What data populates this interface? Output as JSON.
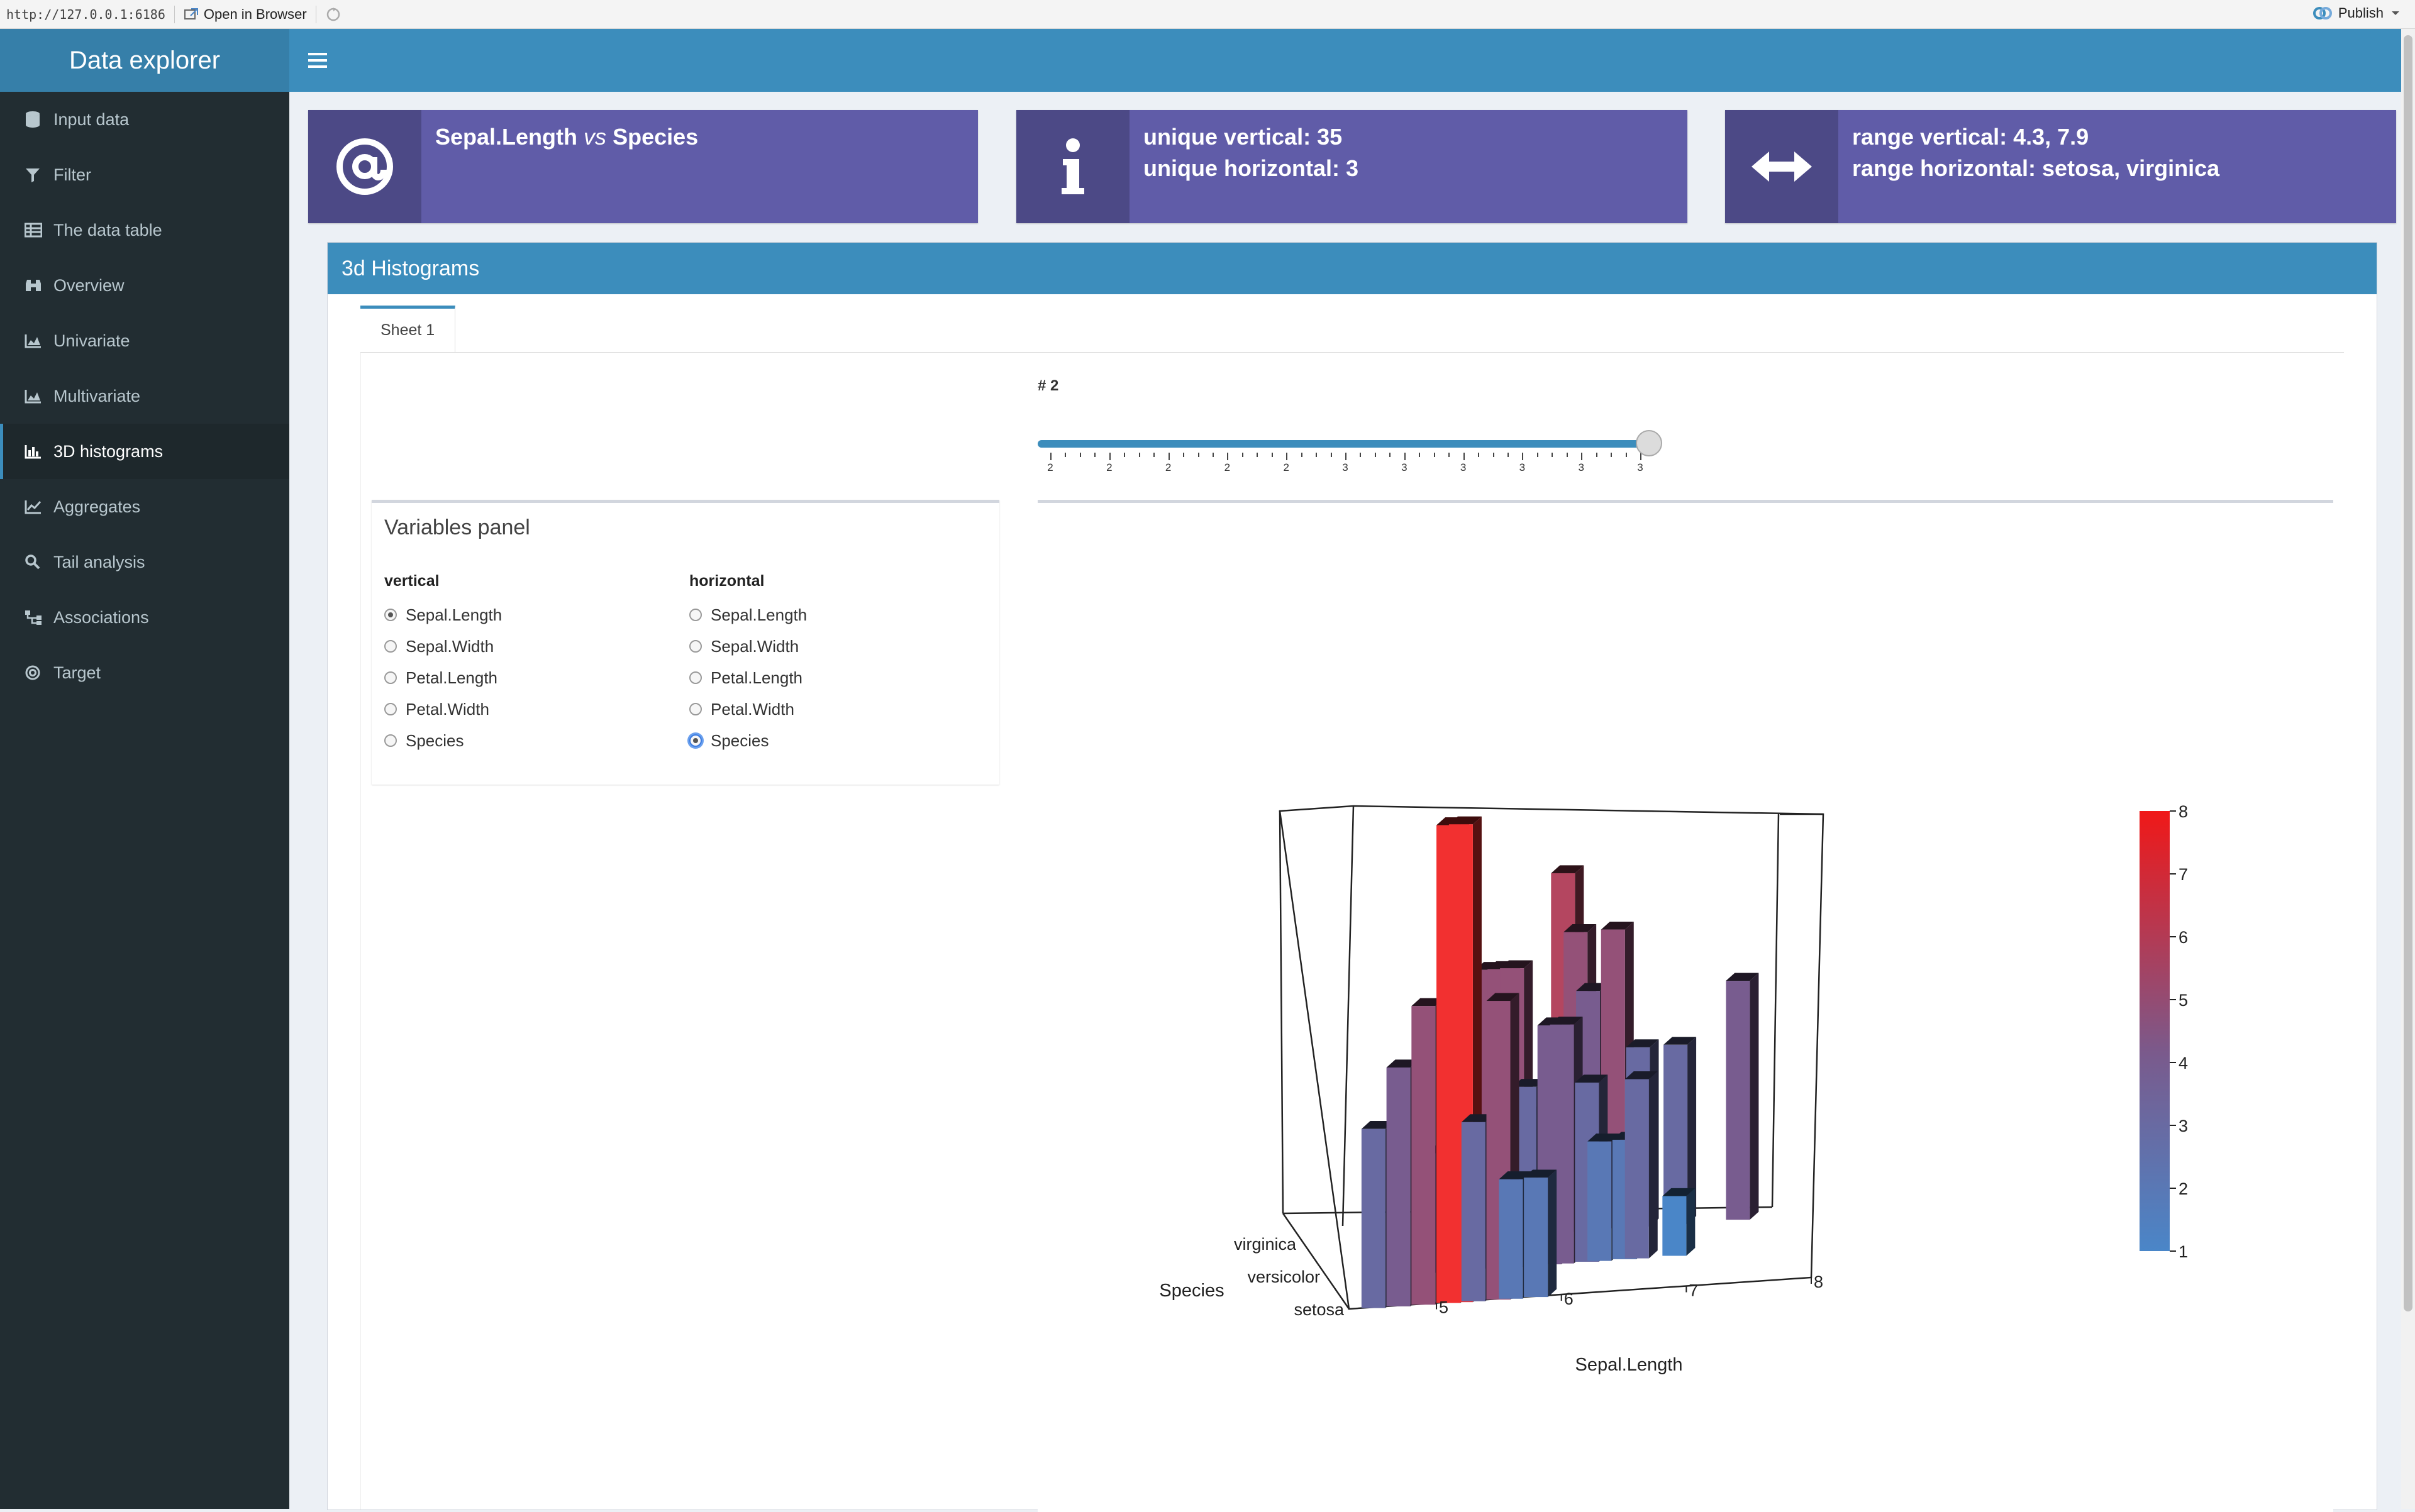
{
  "browser": {
    "url": "http://127.0.0.1:6186",
    "open_in_browser": "Open in Browser",
    "publish": "Publish"
  },
  "sidebar": {
    "title": "Data explorer",
    "items": [
      {
        "label": "Input data",
        "icon": "database-icon"
      },
      {
        "label": "Filter",
        "icon": "filter-icon"
      },
      {
        "label": "The data table",
        "icon": "table-icon"
      },
      {
        "label": "Overview",
        "icon": "binoculars-icon"
      },
      {
        "label": "Univariate",
        "icon": "area-chart-icon"
      },
      {
        "label": "Multivariate",
        "icon": "area-chart-icon"
      },
      {
        "label": "3D histograms",
        "icon": "bar-chart-icon",
        "active": true
      },
      {
        "label": "Aggregates",
        "icon": "line-chart-icon"
      },
      {
        "label": "Tail analysis",
        "icon": "search-icon"
      },
      {
        "label": "Associations",
        "icon": "sitemap-icon"
      },
      {
        "label": "Target",
        "icon": "bullseye-icon"
      }
    ]
  },
  "infoboxes": {
    "box1": {
      "var1": "Sepal.Length",
      "vs": "vs",
      "var2": "Species"
    },
    "box2": {
      "line1": "unique vertical: 35",
      "line2": "unique horizontal: 3"
    },
    "box3": {
      "line1": "range vertical: 4.3, 7.9",
      "line2": "range horizontal: setosa, virginica"
    }
  },
  "mainbox": {
    "title": "3d Histograms",
    "tab": "Sheet 1"
  },
  "slider": {
    "label": "# 2",
    "value_fraction": 1.0,
    "tick_labels": [
      "2",
      "2",
      "2",
      "2",
      "2",
      "3",
      "3",
      "3",
      "3",
      "3",
      "3"
    ]
  },
  "variables_panel": {
    "title": "Variables panel",
    "vertical": {
      "heading": "vertical",
      "options": [
        "Sepal.Length",
        "Sepal.Width",
        "Petal.Length",
        "Petal.Width",
        "Species"
      ],
      "selected": "Sepal.Length"
    },
    "horizontal": {
      "heading": "horizontal",
      "options": [
        "Sepal.Length",
        "Sepal.Width",
        "Petal.Length",
        "Petal.Width",
        "Species"
      ],
      "selected": "Species"
    }
  },
  "chart_data": {
    "type": "3d-bar",
    "xlabel": "Sepal.Length",
    "ylabel": "Species",
    "x_ticks": [
      "5",
      "6",
      "7",
      "8"
    ],
    "y_ticks": [
      "setosa",
      "versicolor",
      "virginica"
    ],
    "zlim": [
      1,
      8
    ],
    "colorbar_ticks": [
      "1",
      "2",
      "3",
      "4",
      "5",
      "6",
      "7",
      "8"
    ],
    "colors": {
      "low": "#4a86c8",
      "mid": "#7a5a8c",
      "high": "#f23030"
    },
    "series": [
      {
        "name": "setosa",
        "x": [
          4.4,
          4.6,
          4.8,
          5.0,
          5.1,
          5.2,
          5.4,
          5.5,
          5.7
        ],
        "values": [
          3,
          4,
          5,
          8,
          8,
          3,
          5,
          2,
          2
        ]
      },
      {
        "name": "versicolor",
        "x": [
          5.0,
          5.5,
          5.6,
          5.7,
          5.8,
          6.0,
          6.1,
          6.3,
          6.4,
          6.6,
          6.7,
          7.0
        ],
        "values": [
          2,
          5,
          5,
          5,
          3,
          4,
          4,
          3,
          2,
          2,
          3,
          1
        ]
      },
      {
        "name": "virginica",
        "x": [
          5.8,
          6.0,
          6.3,
          6.4,
          6.5,
          6.7,
          6.9,
          7.2,
          7.7
        ],
        "values": [
          3,
          2,
          6,
          5,
          4,
          5,
          3,
          3,
          4
        ]
      }
    ]
  }
}
